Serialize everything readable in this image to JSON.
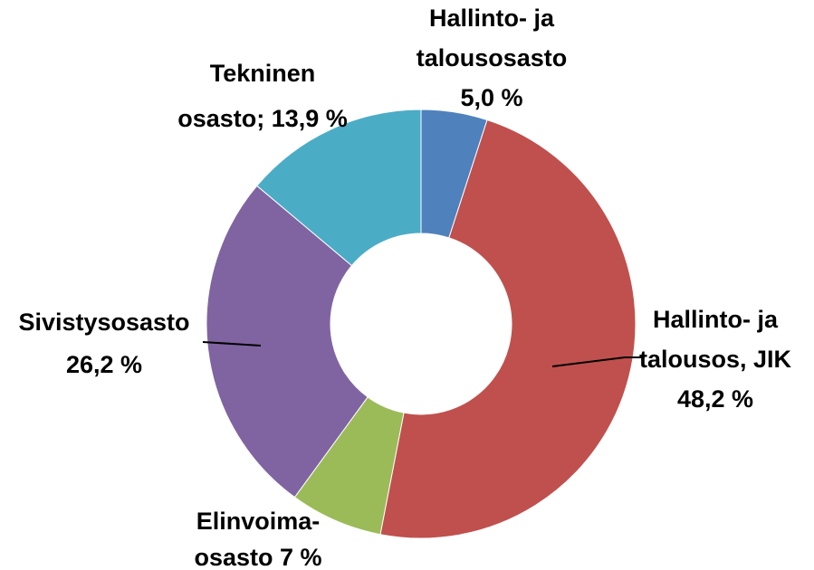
{
  "chart_data": {
    "type": "donut",
    "values": [
      5.0,
      48.2,
      7,
      26.2,
      13.9
    ],
    "value_labels": [
      [
        "Hallinto- ja",
        "talousosasto",
        "5,0 %"
      ],
      [
        "Hallinto- ja",
        "talousos, JIK",
        "48,2 %"
      ],
      [
        "Elinvoima-",
        "osasto 7 %"
      ],
      [
        "Sivistysosasto",
        "26,2 %"
      ],
      [
        "Tekninen",
        "osasto; 13,9 %"
      ]
    ],
    "colors": [
      "#4f81bd",
      "#c0504d",
      "#9bbb59",
      "#8064a2",
      "#4bacc6"
    ]
  }
}
